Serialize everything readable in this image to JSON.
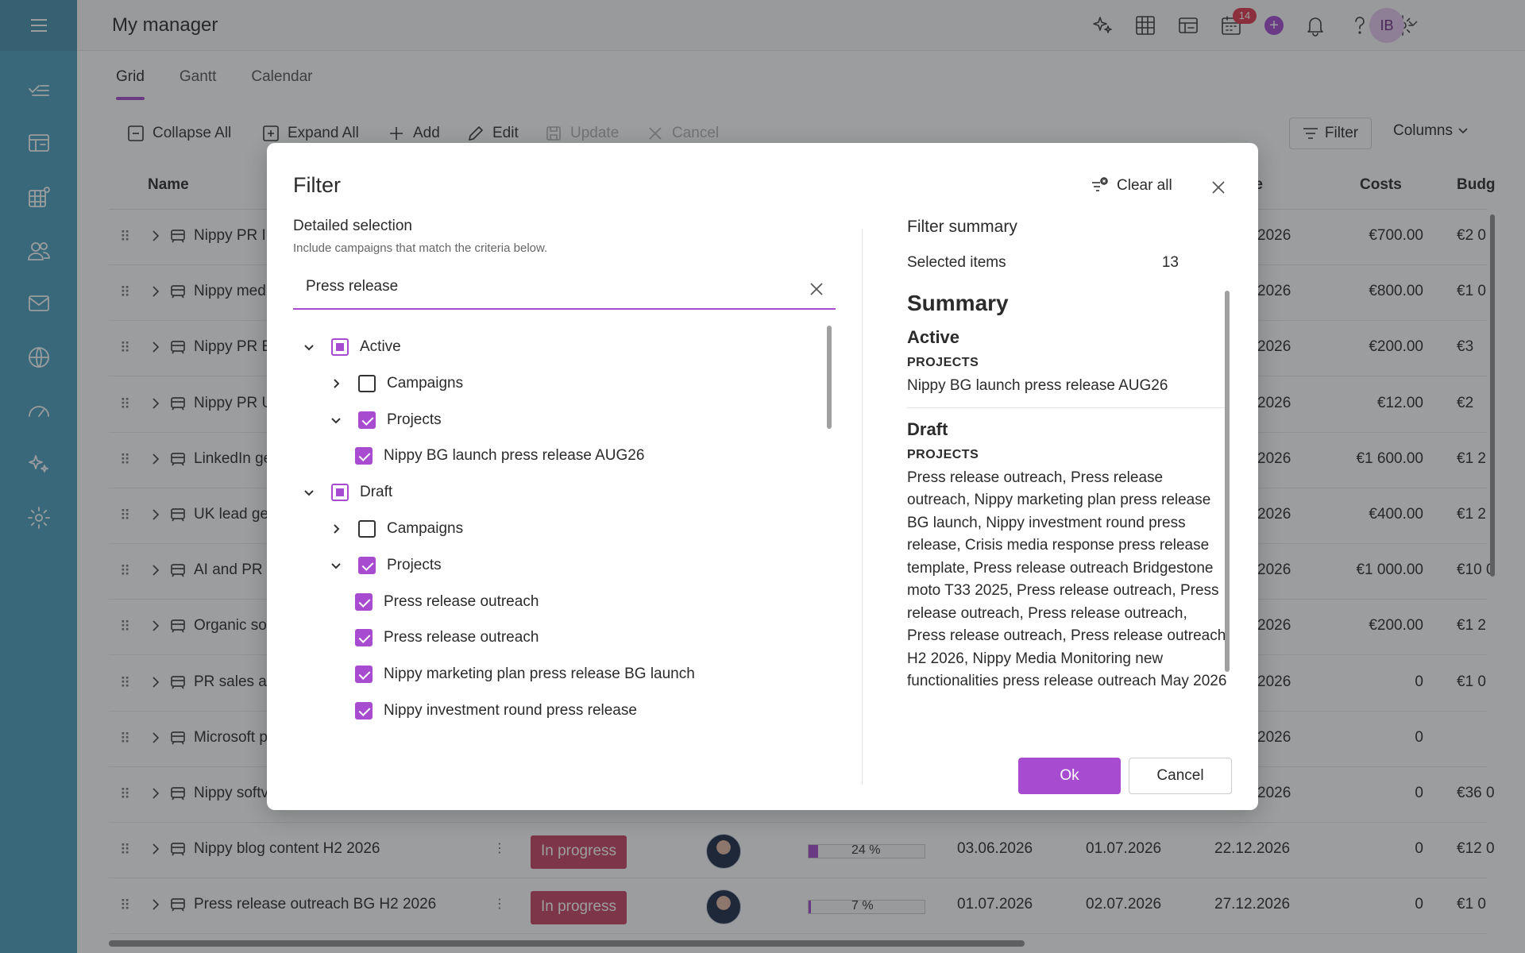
{
  "app": {
    "title": "My manager",
    "notification_count": "14",
    "user_initials": "IB"
  },
  "colors": {
    "accent": "#a74bd0",
    "sidebar": "#4c9fbd",
    "status": "#c94465",
    "badge": "#e2384d"
  },
  "sidebar": {
    "icons": [
      "menu-icon",
      "tasks-icon",
      "dashboard-icon",
      "portfolio-icon",
      "team-icon",
      "mail-icon",
      "globe-icon",
      "speedometer-icon",
      "ai-sparkle-icon",
      "settings-icon"
    ]
  },
  "topbar": {
    "icons": [
      "ai-sparkle-icon",
      "grid-icon",
      "table-edit-icon",
      "calendar-icon",
      "add-icon",
      "bell-icon",
      "help-icon",
      "settings-icon"
    ]
  },
  "tabs": [
    {
      "label": "Grid",
      "active": true
    },
    {
      "label": "Gantt",
      "active": false
    },
    {
      "label": "Calendar",
      "active": false
    }
  ],
  "toolbar": {
    "collapse_all": "Collapse All",
    "expand_all": "Expand All",
    "add": "Add",
    "edit": "Edit",
    "update": "Update",
    "cancel": "Cancel",
    "filter": "Filter",
    "columns": "Columns"
  },
  "grid": {
    "headers": {
      "name": "Name",
      "end": "te",
      "costs": "Costs",
      "budget": "Budg"
    },
    "rows": [
      {
        "name": "Nippy PR In",
        "date3": "2026",
        "cost": "€700.00",
        "budget": "€2 0"
      },
      {
        "name": "Nippy med",
        "date3": "2026",
        "cost": "€800.00",
        "budget": "€1 0"
      },
      {
        "name": "Nippy PR E",
        "date3": "2026",
        "cost": "€200.00",
        "budget": "€3"
      },
      {
        "name": "Nippy PR U",
        "date3": "2026",
        "cost": "€12.00",
        "budget": "€2"
      },
      {
        "name": "LinkedIn ge",
        "date3": "2026",
        "cost": "€1 600.00",
        "budget": "€1 2"
      },
      {
        "name": "UK lead ge",
        "date3": "2026",
        "cost": "€400.00",
        "budget": "€1 2"
      },
      {
        "name": "AI and PR t",
        "date3": "2026",
        "cost": "€1 000.00",
        "budget": "€10 0"
      },
      {
        "name": "Organic so",
        "date3": "2026",
        "cost": "€200.00",
        "budget": "€1 2"
      },
      {
        "name": "PR sales ar",
        "date3": "2026",
        "cost": "0",
        "budget": "€1 0"
      },
      {
        "name": "Microsoft p",
        "date3": "2026",
        "cost": "0",
        "budget": ""
      },
      {
        "name": "Nippy softv",
        "date3": "2026",
        "cost": "0",
        "budget": "€36 0"
      },
      {
        "name": "Nippy blog content H2 2026",
        "status": "In progress",
        "progress": "24 %",
        "progress_value": 24,
        "date1": "03.06.2026",
        "date2": "01.07.2026",
        "date3": "22.12.2026",
        "cost": "0",
        "budget": "€12 0"
      },
      {
        "name": "Press release outreach BG H2 2026",
        "status": "In progress",
        "progress": "7 %",
        "progress_value": 7,
        "date1": "01.07.2026",
        "date2": "02.07.2026",
        "date3": "27.12.2026",
        "cost": "0",
        "budget": "€1 0"
      }
    ]
  },
  "dialog": {
    "title": "Filter",
    "clear_all": "Clear all",
    "detailed_heading": "Detailed selection",
    "detailed_sub": "Include campaigns that match the criteria below.",
    "search_value": "Press release",
    "tree": [
      {
        "label": "Active",
        "state": "partial",
        "chevron": "down",
        "level": 0
      },
      {
        "label": "Campaigns",
        "state": "unchecked",
        "chevron": "right",
        "level": 1
      },
      {
        "label": "Projects",
        "state": "checked",
        "chevron": "down",
        "level": 1
      },
      {
        "label": "Nippy BG launch press release AUG26",
        "state": "checked",
        "chevron": "none",
        "level": 2
      },
      {
        "label": "Draft",
        "state": "partial",
        "chevron": "down",
        "level": 0
      },
      {
        "label": "Campaigns",
        "state": "unchecked",
        "chevron": "right",
        "level": 1
      },
      {
        "label": "Projects",
        "state": "checked",
        "chevron": "down",
        "level": 1
      },
      {
        "label": "Press release outreach",
        "state": "checked",
        "chevron": "none",
        "level": 2
      },
      {
        "label": "Press release outreach",
        "state": "checked",
        "chevron": "none",
        "level": 2
      },
      {
        "label": "Nippy marketing plan press release BG launch",
        "state": "checked",
        "chevron": "none",
        "level": 2
      },
      {
        "label": "Nippy investment round press release",
        "state": "checked",
        "chevron": "none",
        "level": 2
      }
    ],
    "summary": {
      "title": "Filter summary",
      "selected_label": "Selected items",
      "selected_count": "13",
      "heading": "Summary",
      "active_group": "Active",
      "active_cat": "PROJECTS",
      "active_items": "Nippy BG launch press release AUG26",
      "draft_group": "Draft",
      "draft_cat": "PROJECTS",
      "draft_items": "Press release outreach, Press release outreach, Nippy marketing plan press release BG launch, Nippy investment round press release, Crisis media response press release template, Press release outreach Bridgestone moto T33 2025, Press release outreach, Press release outreach, Press release outreach, Press release outreach, Press release outreach H2 2026, Nippy Media Monitoring new functionalities press release outreach May 2026"
    },
    "ok": "Ok",
    "cancel": "Cancel"
  }
}
